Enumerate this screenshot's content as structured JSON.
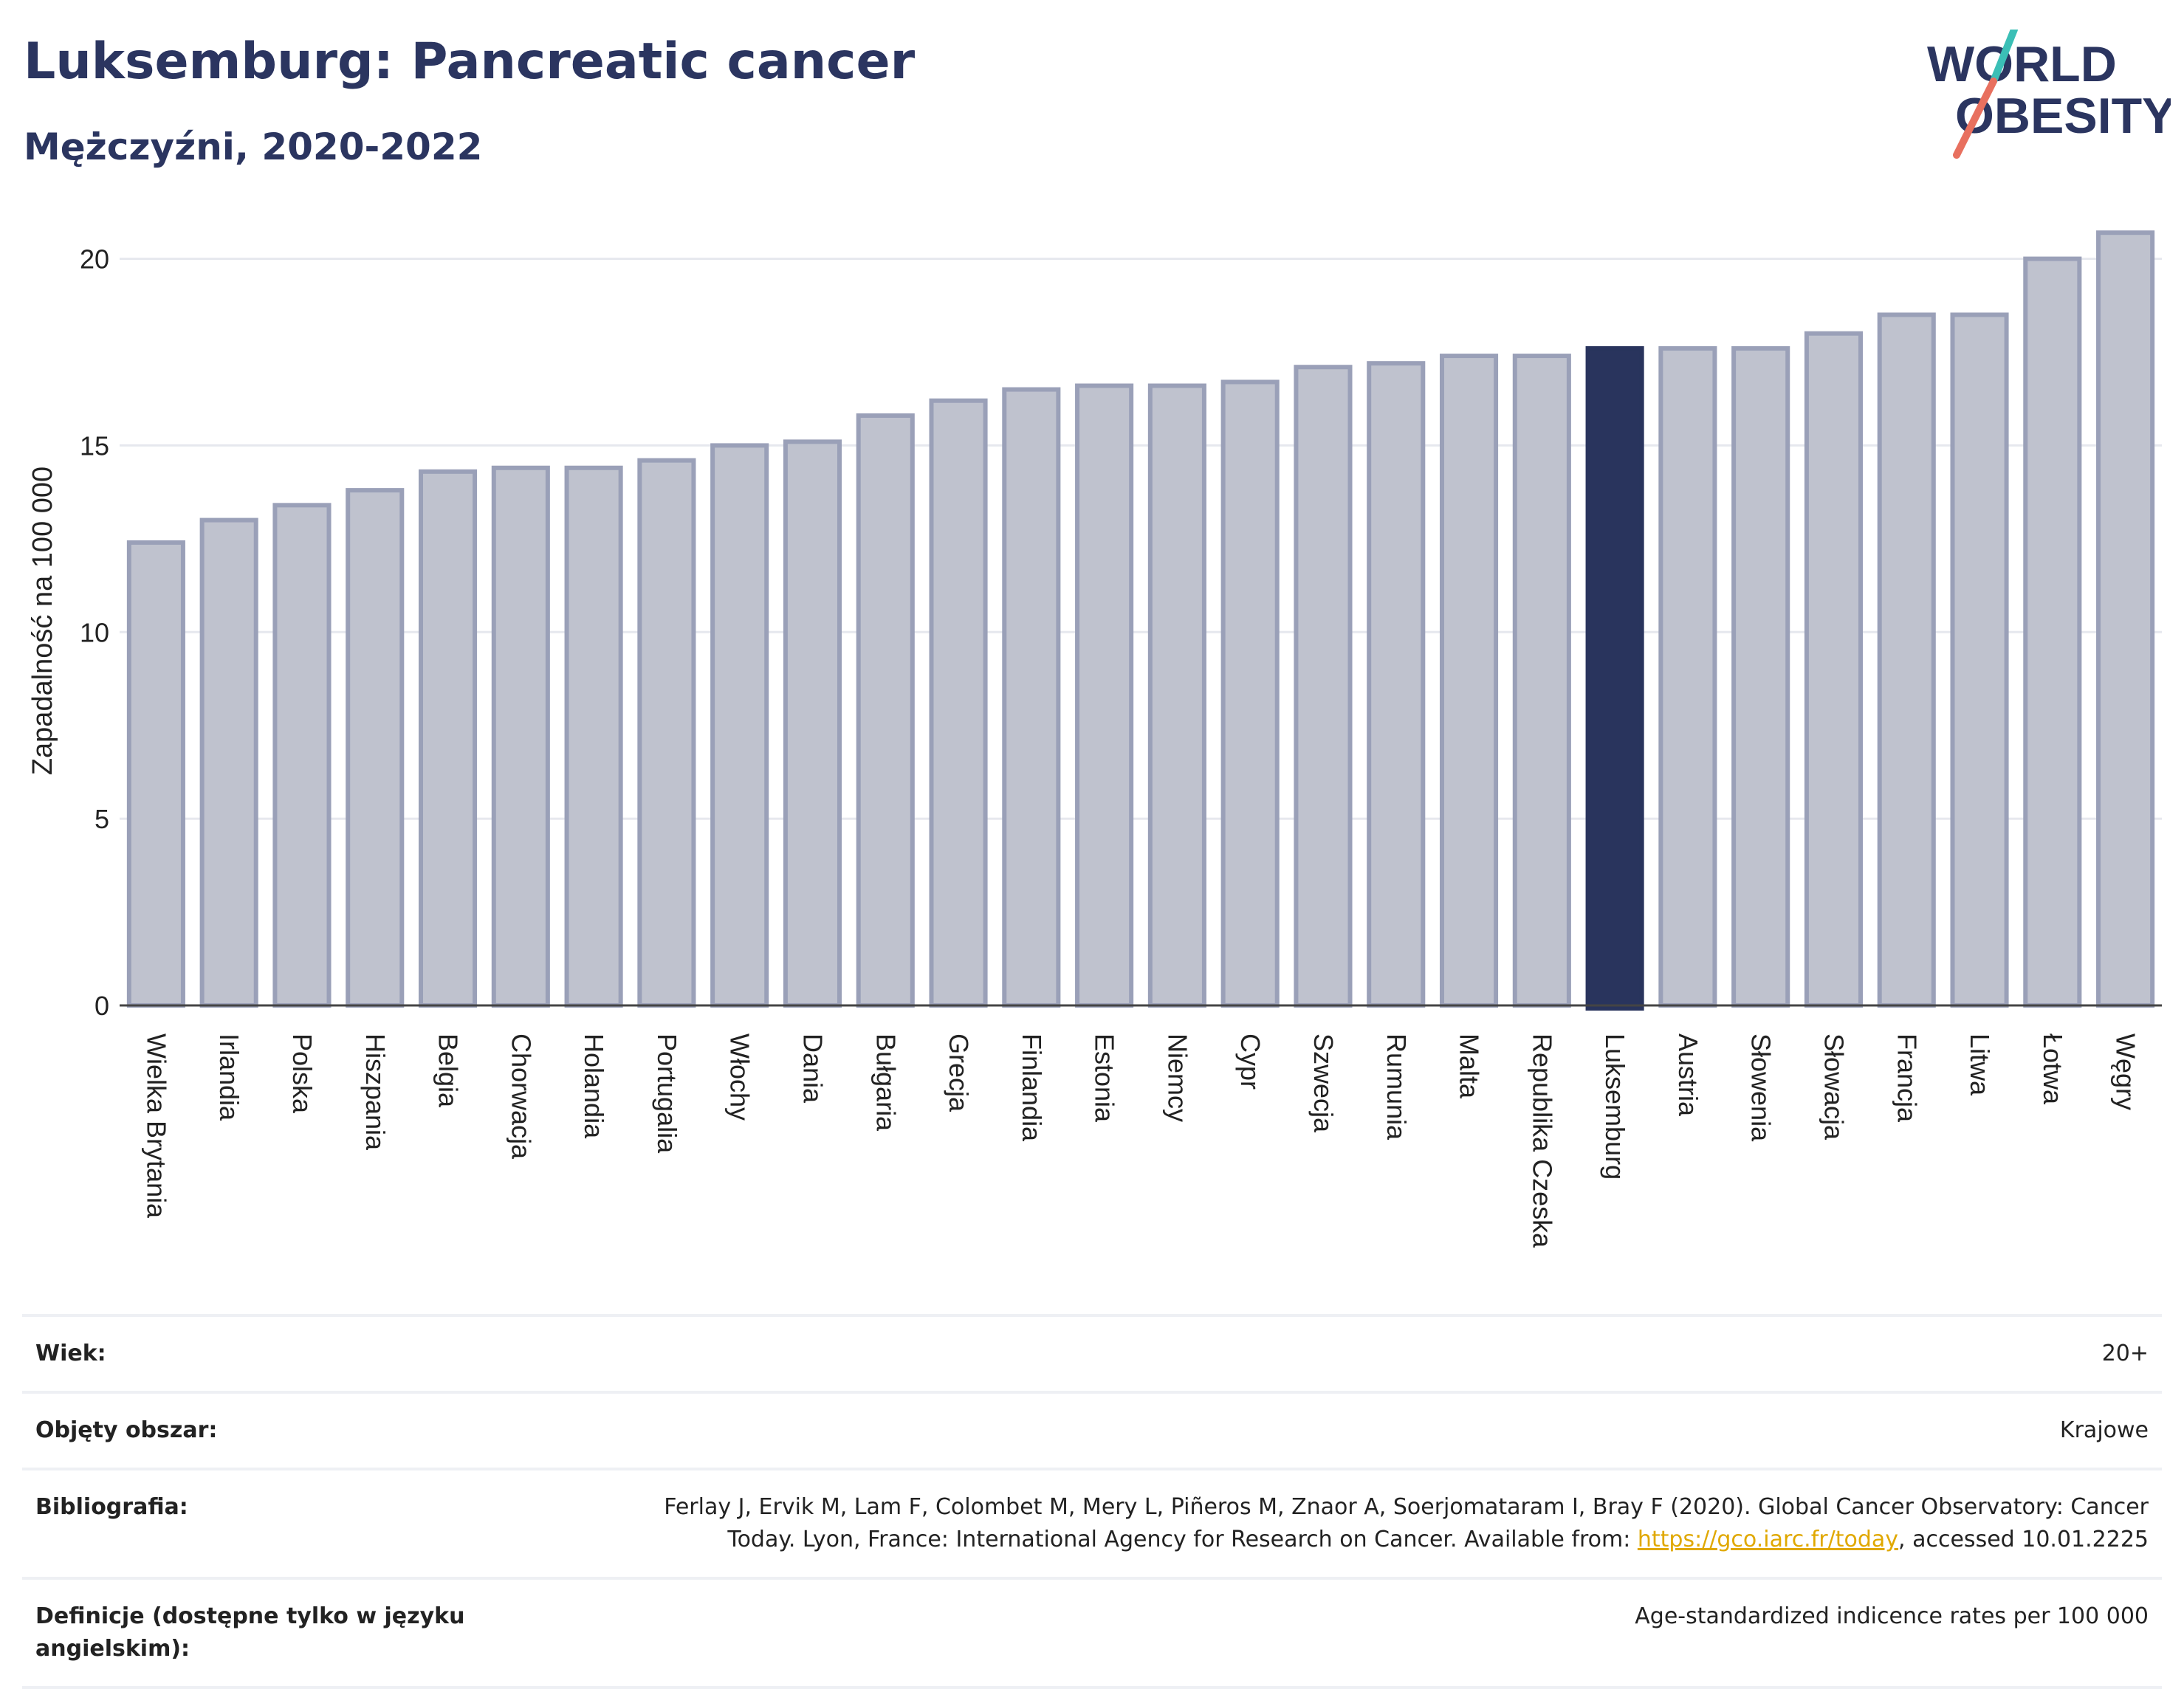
{
  "header": {
    "title": "Luksemburg: Pancreatic cancer",
    "subtitle": "Mężczyźni, 2020-2022",
    "logo_line1": "WORLD",
    "logo_line2": "OBESITY"
  },
  "colors": {
    "bar_default": "#bfc2ce",
    "bar_default_edge": "#9aa0b8",
    "bar_highlight": "#29345d",
    "title": "#2b3560",
    "logo_teal": "#3bbfb6",
    "logo_coral": "#e8705f",
    "link": "#e0a800"
  },
  "chart_data": {
    "type": "bar",
    "ylabel": "Zapadalność na 100 000",
    "xlabel": "",
    "ylim": [
      0,
      21
    ],
    "yticks": [
      0,
      5,
      10,
      15,
      20
    ],
    "grid": true,
    "highlight": "Luksemburg",
    "categories": [
      "Wielka Brytania",
      "Irlandia",
      "Polska",
      "Hiszpania",
      "Belgia",
      "Chorwacja",
      "Holandia",
      "Portugalia",
      "Włochy",
      "Dania",
      "Bułgaria",
      "Grecja",
      "Finlandia",
      "Estonia",
      "Niemcy",
      "Cypr",
      "Szwecja",
      "Rumunia",
      "Malta",
      "Republika Czeska",
      "Luksemburg",
      "Austria",
      "Słowenia",
      "Słowacja",
      "Francja",
      "Litwa",
      "Łotwa",
      "Węgry"
    ],
    "values": [
      12.4,
      13.0,
      13.4,
      13.8,
      14.3,
      14.4,
      14.4,
      14.6,
      15.0,
      15.1,
      15.8,
      16.2,
      16.5,
      16.6,
      16.6,
      16.7,
      17.1,
      17.2,
      17.4,
      17.4,
      17.6,
      17.6,
      17.6,
      18.0,
      18.5,
      18.5,
      20.0,
      20.7
    ]
  },
  "meta": {
    "age_label": "Wiek:",
    "age_value": "20+",
    "area_label": "Objęty obszar:",
    "area_value": "Krajowe",
    "bib_label": "Bibliografia:",
    "bib_text_1": "Ferlay J, Ervik M, Lam F, Colombet M, Mery L, Piñeros M, Znaor A, Soerjomataram I, Bray F (2020). Global Cancer Observatory: Cancer",
    "bib_text_2": "Today. Lyon, France: International Agency for Research on Cancer. Available from: ",
    "bib_link": "https://gco.iarc.fr/today",
    "bib_text_3": ", accessed 10.01.2225",
    "def_label": "Definicje (dostępne tylko w języku angielskim):",
    "def_value": "Age-standardized indicence rates per 100 000"
  }
}
